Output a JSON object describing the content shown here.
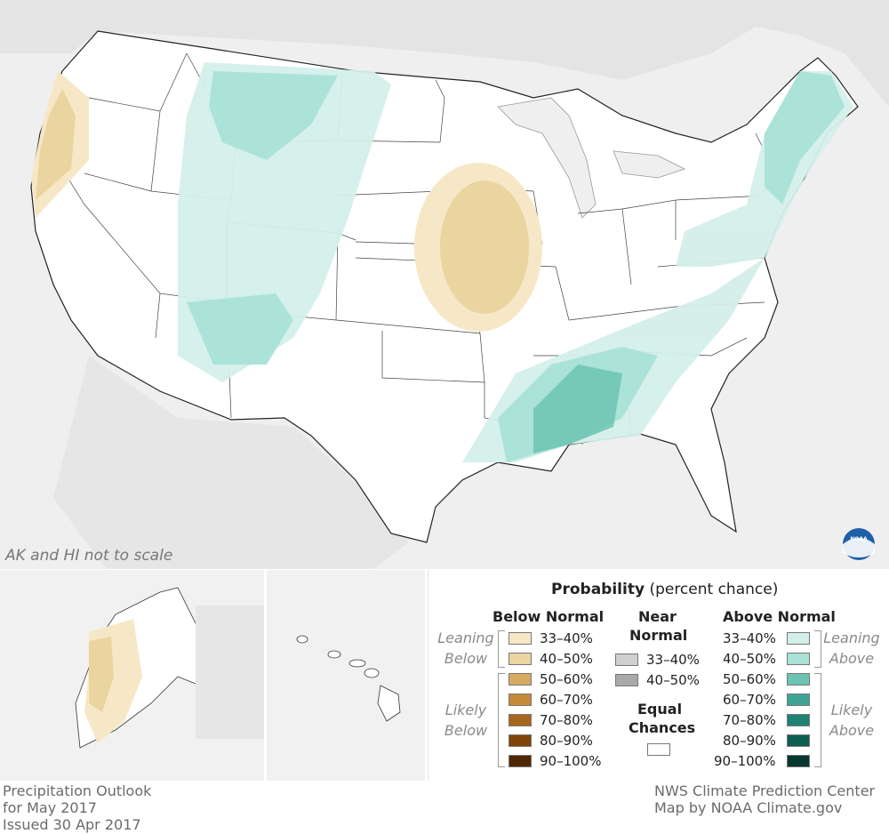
{
  "map": {
    "note": "AK and HI not to scale",
    "logo": "noaa-logo"
  },
  "legend": {
    "title": "Probability",
    "title_suffix": "(percent chance)",
    "below_header": "Below Normal",
    "near_header_1": "Near",
    "near_header_2": "Normal",
    "above_header": "Above Normal",
    "equal_1": "Equal",
    "equal_2": "Chances",
    "leaning_below_1": "Leaning",
    "leaning_below_2": "Below",
    "likely_below_1": "Likely",
    "likely_below_2": "Below",
    "leaning_above_1": "Leaning",
    "leaning_above_2": "Above",
    "likely_above_1": "Likely",
    "likely_above_2": "Above",
    "below": [
      {
        "label": "33–40%",
        "color": "#f6e8c6"
      },
      {
        "label": "40–50%",
        "color": "#ead4a0"
      },
      {
        "label": "50–60%",
        "color": "#d7aa63"
      },
      {
        "label": "60–70%",
        "color": "#c48a3a"
      },
      {
        "label": "70–80%",
        "color": "#a8651e"
      },
      {
        "label": "80–90%",
        "color": "#7e4408"
      },
      {
        "label": "90–100%",
        "color": "#4e2804"
      }
    ],
    "near": [
      {
        "label": "33–40%",
        "color": "#cfcfcf"
      },
      {
        "label": "40–50%",
        "color": "#a9a9a9"
      }
    ],
    "above": [
      {
        "label": "33–40%",
        "color": "#d4efea"
      },
      {
        "label": "40–50%",
        "color": "#a9e2d7"
      },
      {
        "label": "50–60%",
        "color": "#6cc4b3"
      },
      {
        "label": "60–70%",
        "color": "#3ea596"
      },
      {
        "label": "70–80%",
        "color": "#1f8273"
      },
      {
        "label": "80–90%",
        "color": "#0e5e50"
      },
      {
        "label": "90–100%",
        "color": "#07382f"
      }
    ],
    "equal_color": "#ffffff"
  },
  "footer": {
    "left_1": "Precipitation Outlook",
    "left_2": "for May 2017",
    "left_3": "Issued 30 Apr 2017",
    "right_1": "NWS Climate Prediction Center",
    "right_2": "Map by NOAA Climate.gov"
  }
}
